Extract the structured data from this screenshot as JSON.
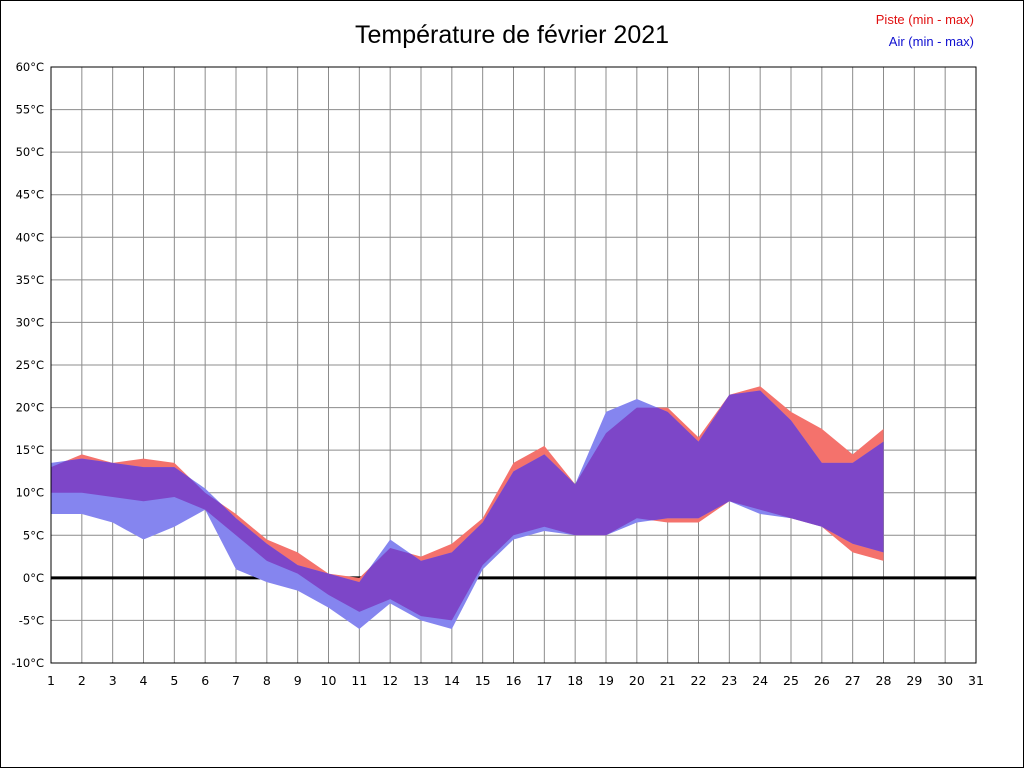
{
  "title": "Température de février 2021",
  "legend": {
    "piste": "Piste (min - max)",
    "air": "Air (min - max)",
    "piste_color": "#e01010",
    "air_color": "#1010d0"
  },
  "chart_data": {
    "type": "area",
    "title": "Température de février 2021",
    "xlabel": "",
    "ylabel": "°C",
    "xlim": [
      1,
      31
    ],
    "ylim": [
      -10,
      60
    ],
    "y_tick_step": 5,
    "y_unit": "°C",
    "grid": true,
    "grid_color": "#8c8c8c",
    "zero_line": true,
    "zero_line_color": "#000000",
    "legend_position": "top-right",
    "x_ticks": [
      1,
      2,
      3,
      4,
      5,
      6,
      7,
      8,
      9,
      10,
      11,
      12,
      13,
      14,
      15,
      16,
      17,
      18,
      19,
      20,
      21,
      22,
      23,
      24,
      25,
      26,
      27,
      28,
      29,
      30,
      31
    ],
    "y_ticks": [
      60,
      55,
      50,
      45,
      40,
      35,
      30,
      25,
      20,
      15,
      10,
      5,
      0,
      -5,
      -10
    ],
    "x": [
      1,
      2,
      3,
      4,
      5,
      6,
      7,
      8,
      9,
      10,
      11,
      12,
      13,
      14,
      15,
      16,
      17,
      18,
      19,
      20,
      21,
      22,
      23,
      24,
      25,
      26,
      27,
      28
    ],
    "series": [
      {
        "name": "Piste (min - max)",
        "fill": "#f4726c",
        "min": [
          10,
          10,
          9.5,
          9,
          9.5,
          8,
          5,
          2,
          0.5,
          -2,
          -4,
          -2.5,
          -4.5,
          -5,
          1.5,
          5,
          6,
          5,
          5,
          7,
          6.5,
          6.5,
          9,
          8,
          7,
          6,
          3,
          2
        ],
        "max": [
          13,
          14.5,
          13.5,
          14,
          13.5,
          10,
          7.5,
          4.5,
          3,
          0.5,
          0,
          3.5,
          2.5,
          4,
          7,
          13.5,
          15.5,
          11,
          17,
          20,
          20,
          16.5,
          21.5,
          22.5,
          19.5,
          17.5,
          14.5,
          17.5
        ]
      },
      {
        "name": "Air (min - max)",
        "fill": "#8585ef",
        "min": [
          7.5,
          7.5,
          6.5,
          4.5,
          6,
          8,
          1,
          -0.5,
          -1.5,
          -3.5,
          -6,
          -3,
          -5,
          -6,
          1,
          4.5,
          5.5,
          5,
          5,
          6.5,
          7,
          7,
          9,
          7.5,
          7,
          6,
          4,
          3
        ],
        "max": [
          13.5,
          14,
          13.5,
          13,
          13,
          10.5,
          7,
          4,
          1.5,
          0.5,
          -0.5,
          4.5,
          2,
          3,
          6.5,
          12.5,
          14.5,
          11,
          19.5,
          21,
          19.5,
          16,
          21.5,
          22,
          18.5,
          13.5,
          13.5,
          16
        ]
      }
    ],
    "overlap_fill": "#7d46c8"
  }
}
